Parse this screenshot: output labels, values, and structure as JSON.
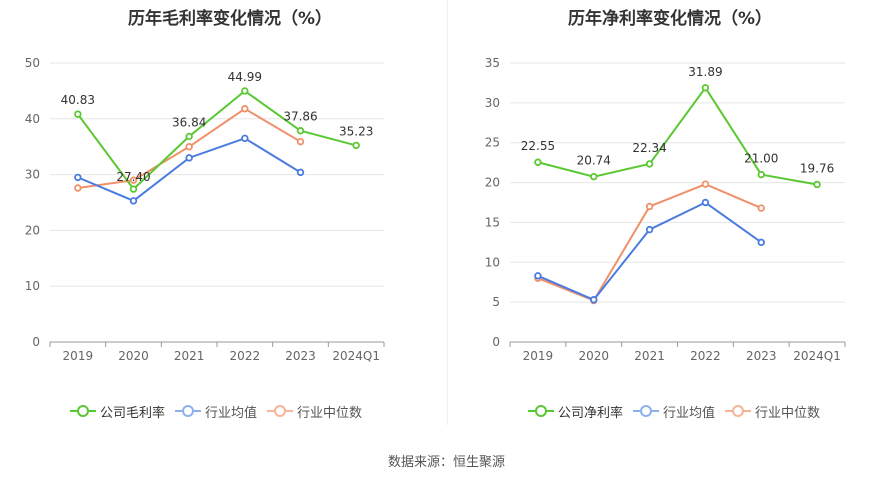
{
  "source_text": "数据来源：恒生聚源",
  "chart_data": [
    {
      "type": "line",
      "title": "历年毛利率变化情况（%）",
      "categories": [
        "2019",
        "2020",
        "2021",
        "2022",
        "2023",
        "2024Q1"
      ],
      "ylim": [
        0,
        50
      ],
      "yticks": [
        0,
        10,
        20,
        30,
        40,
        50
      ],
      "grid": true,
      "legend_position": "bottom",
      "series": [
        {
          "name": "公司毛利率",
          "color": "#5ac832",
          "values": [
            40.83,
            27.4,
            36.84,
            44.99,
            37.86,
            35.23
          ],
          "labels": [
            "40.83",
            "27.40",
            "36.84",
            "44.99",
            "37.86",
            "35.23"
          ]
        },
        {
          "name": "行业均值",
          "color": "#4a7be0",
          "values": [
            29.5,
            25.3,
            33.0,
            36.5,
            30.4,
            null
          ]
        },
        {
          "name": "行业中位数",
          "color": "#f0906a",
          "values": [
            27.6,
            29.0,
            35.0,
            41.8,
            35.9,
            null
          ]
        }
      ]
    },
    {
      "type": "line",
      "title": "历年净利率变化情况（%）",
      "categories": [
        "2019",
        "2020",
        "2021",
        "2022",
        "2023",
        "2024Q1"
      ],
      "ylim": [
        0,
        35
      ],
      "yticks": [
        0,
        5,
        10,
        15,
        20,
        25,
        30,
        35
      ],
      "grid": true,
      "legend_position": "bottom",
      "series": [
        {
          "name": "公司净利率",
          "color": "#5ac832",
          "values": [
            22.55,
            20.74,
            22.34,
            31.89,
            21.0,
            19.76
          ],
          "labels": [
            "22.55",
            "20.74",
            "22.34",
            "31.89",
            "21.00",
            "19.76"
          ]
        },
        {
          "name": "行业均值",
          "color": "#4a7be0",
          "values": [
            8.3,
            5.3,
            14.1,
            17.5,
            12.5,
            null
          ]
        },
        {
          "name": "行业中位数",
          "color": "#f0906a",
          "values": [
            8.0,
            5.2,
            17.0,
            19.8,
            16.8,
            null
          ]
        }
      ]
    }
  ]
}
